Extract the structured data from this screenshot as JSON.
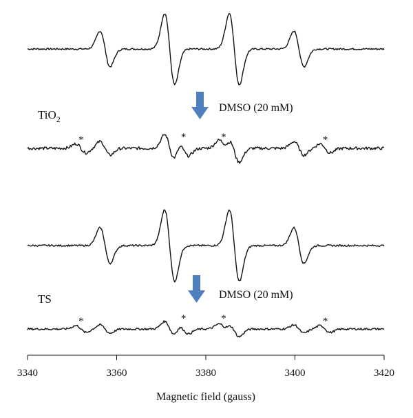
{
  "chart_data": {
    "type": "line",
    "title": "",
    "xlabel": "Magnetic field (gauss)",
    "ylabel": "",
    "xlim": [
      3340,
      3420
    ],
    "xticks": [
      3340,
      3360,
      3380,
      3400,
      3420
    ],
    "grid": false,
    "legend": "none",
    "line_color": "#111111",
    "arrow_color": "#4f7fbf",
    "panels": [
      {
        "label": "",
        "base": "quartet",
        "lines": [
          {
            "pos": 3357.4,
            "amp": 1.0
          },
          {
            "pos": 3371.9,
            "amp": 2.0
          },
          {
            "pos": 3386.4,
            "amp": 2.0
          },
          {
            "pos": 3400.9,
            "amp": 1.0
          }
        ],
        "noise": 0.06
      },
      {
        "label": "TiO",
        "label_sub": "2",
        "base": "quartet + DMSO",
        "lines": [
          {
            "pos": 3357.4,
            "amp": 0.45
          },
          {
            "pos": 3371.9,
            "amp": 0.9
          },
          {
            "pos": 3386.4,
            "amp": 0.9
          },
          {
            "pos": 3400.9,
            "amp": 0.45
          },
          {
            "pos": 3352.0,
            "amp": 0.3
          },
          {
            "pos": 3375.0,
            "amp": 0.5
          },
          {
            "pos": 3384.0,
            "amp": 0.5
          },
          {
            "pos": 3406.8,
            "amp": 0.3
          }
        ],
        "noise": 0.12
      },
      {
        "label": "",
        "base": "quartet",
        "lines": [
          {
            "pos": 3357.4,
            "amp": 1.0
          },
          {
            "pos": 3371.9,
            "amp": 2.0
          },
          {
            "pos": 3386.4,
            "amp": 2.0
          },
          {
            "pos": 3400.9,
            "amp": 1.0
          }
        ],
        "noise": 0.06
      },
      {
        "label": "TS",
        "base": "quartet + DMSO",
        "lines": [
          {
            "pos": 3357.4,
            "amp": 0.3
          },
          {
            "pos": 3371.9,
            "amp": 0.55
          },
          {
            "pos": 3386.4,
            "amp": 0.55
          },
          {
            "pos": 3400.9,
            "amp": 0.3
          },
          {
            "pos": 3352.0,
            "amp": 0.25
          },
          {
            "pos": 3375.0,
            "amp": 0.35
          },
          {
            "pos": 3384.0,
            "amp": 0.35
          },
          {
            "pos": 3406.8,
            "amp": 0.25
          }
        ],
        "noise": 0.09
      }
    ],
    "annotations": [
      {
        "text": "DMSO (20 mM)",
        "after_panel": 0
      },
      {
        "text": "DMSO (20 mM)",
        "after_panel": 2
      }
    ],
    "marker_symbol": "*",
    "marked_positions": [
      3352.0,
      3375.0,
      3384.0,
      3406.8
    ]
  }
}
